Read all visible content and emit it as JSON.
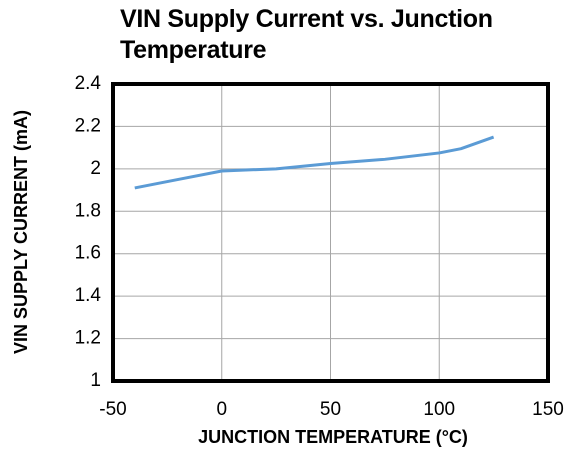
{
  "chart_data": {
    "type": "line",
    "title": "VIN Supply Current vs. Junction Temperature",
    "xlabel": "JUNCTION TEMPERATURE (°C)",
    "ylabel": "VIN SUPPLY CURRENT (mA)",
    "x": [
      -40,
      -20,
      0,
      25,
      50,
      75,
      100,
      110,
      125
    ],
    "series": [
      {
        "name": "VIN Supply Current",
        "color": "#5b9bd5",
        "values": [
          1.91,
          1.95,
          1.99,
          2.0,
          2.025,
          2.045,
          2.075,
          2.095,
          2.15
        ]
      }
    ],
    "xlim": [
      -50,
      150
    ],
    "xticks": [
      -50,
      0,
      50,
      100,
      150
    ],
    "ylim": [
      1,
      2.4
    ],
    "yticks": [
      1,
      1.2,
      1.4,
      1.6,
      1.8,
      2,
      2.2,
      2.4
    ],
    "grid": true
  }
}
